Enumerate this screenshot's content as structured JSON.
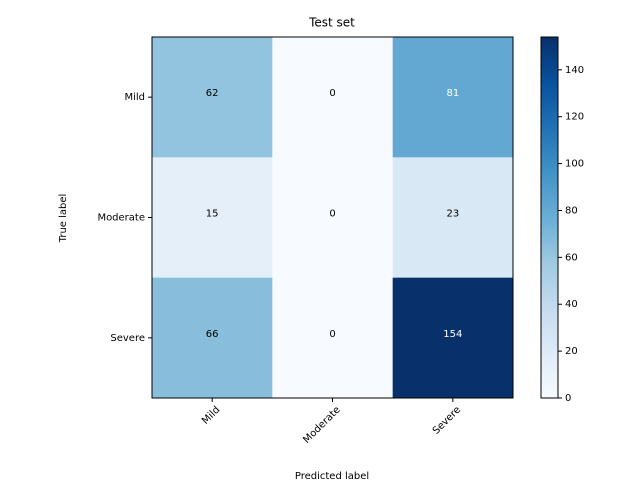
{
  "chart_data": {
    "type": "heatmap",
    "title": "Test set",
    "xlabel": "Predicted label",
    "ylabel": "True label",
    "x_categories": [
      "Mild",
      "Moderate",
      "Severe"
    ],
    "y_categories": [
      "Mild",
      "Moderate",
      "Severe"
    ],
    "values": [
      [
        62,
        0,
        81
      ],
      [
        15,
        0,
        23
      ],
      [
        66,
        0,
        154
      ]
    ],
    "colormap": "Blues",
    "zlim": [
      0,
      154
    ],
    "zticks": [
      0,
      20,
      40,
      60,
      80,
      100,
      120,
      140
    ]
  }
}
